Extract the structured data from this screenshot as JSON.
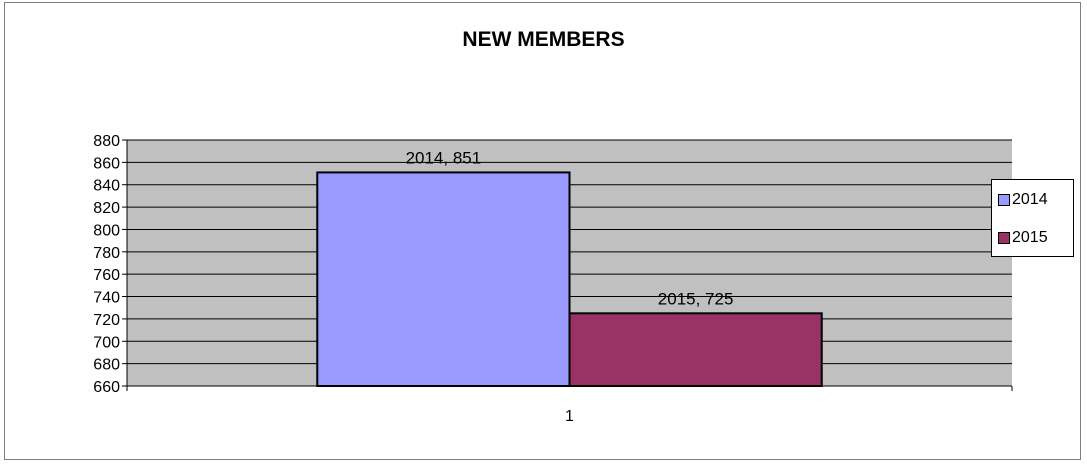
{
  "chart_data": {
    "type": "bar",
    "title": "NEW MEMBERS",
    "categories": [
      "1"
    ],
    "series": [
      {
        "name": "2014",
        "values": [
          851
        ],
        "color": "#9999ff",
        "data_label": "2014, 851"
      },
      {
        "name": "2015",
        "values": [
          725
        ],
        "color": "#993366",
        "data_label": "2015, 725"
      }
    ],
    "ylim": [
      660,
      880
    ],
    "y_ticks": [
      "660",
      "680",
      "700",
      "720",
      "740",
      "760",
      "780",
      "800",
      "820",
      "840",
      "860",
      "880"
    ],
    "grid": true,
    "plot_background": "#c0c0c0",
    "legend_position": "right"
  }
}
